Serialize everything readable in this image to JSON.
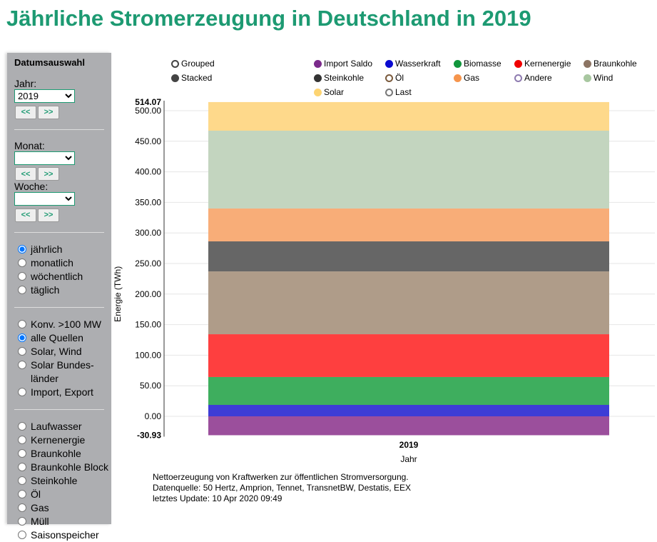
{
  "title": "Jährliche Stromerzeugung in Deutschland in 2019",
  "sidebar": {
    "heading": "Datumsauswahl",
    "year_label": "Jahr:",
    "year_value": "2019",
    "month_label": "Monat:",
    "week_label": "Woche:",
    "prev": "<<",
    "next": ">>",
    "period": [
      {
        "label": "jährlich",
        "checked": true
      },
      {
        "label": "monatlich"
      },
      {
        "label": "wöchentlich"
      },
      {
        "label": "täglich"
      }
    ],
    "sources": [
      {
        "label": "Konv. >100 MW"
      },
      {
        "label": "alle Quellen",
        "checked": true
      },
      {
        "label": "Solar, Wind"
      },
      {
        "label": "Solar Bundes-länder"
      },
      {
        "label": "Import, Export"
      }
    ],
    "types": [
      {
        "label": "Laufwasser"
      },
      {
        "label": "Kernenergie"
      },
      {
        "label": "Braunkohle"
      },
      {
        "label": "Braunkohle Block"
      },
      {
        "label": "Steinkohle"
      },
      {
        "label": "Öl"
      },
      {
        "label": "Gas"
      },
      {
        "label": "Müll"
      },
      {
        "label": "Saisonspeicher"
      }
    ]
  },
  "modes": [
    {
      "label": "Grouped",
      "active": false
    },
    {
      "label": "Stacked",
      "active": true
    }
  ],
  "footer": [
    "Nettoerzeugung von Kraftwerken zur öffentlichen Stromversorgung.",
    "Datenquelle: 50 Hertz, Amprion, Tennet, TransnetBW, Destatis, EEX",
    "letztes Update: 10 Apr 2020 09:49"
  ],
  "chart_data": {
    "type": "bar",
    "stacked": true,
    "categories": [
      "2019"
    ],
    "xlabel": "Jahr",
    "ylabel": "Energie (TWh)",
    "ylim": [
      -30.93,
      514.07
    ],
    "yticks": [
      "0.00",
      "50.00",
      "100.00",
      "150.00",
      "200.00",
      "250.00",
      "300.00",
      "350.00",
      "400.00",
      "450.00",
      "500.00"
    ],
    "ymin_label": "-30.93",
    "ymax_label": "514.07",
    "series": [
      {
        "name": "Import Saldo",
        "color": "#7b2a8b",
        "fill": "#9b4f9c",
        "values": [
          -30.93
        ],
        "enabled": true
      },
      {
        "name": "Wasserkraft",
        "color": "#0a0ad0",
        "fill": "#3d3dd6",
        "values": [
          18.7
        ],
        "enabled": true
      },
      {
        "name": "Biomasse",
        "color": "#11963c",
        "fill": "#3eae5e",
        "values": [
          45.6
        ],
        "enabled": true
      },
      {
        "name": "Kernenergie",
        "color": "#f00000",
        "fill": "#fe3f3f",
        "values": [
          70.0
        ],
        "enabled": true
      },
      {
        "name": "Braunkohle",
        "color": "#8c7463",
        "fill": "#af9c89",
        "values": [
          102.8
        ],
        "enabled": true
      },
      {
        "name": "Steinkohle",
        "color": "#333333",
        "fill": "#666666",
        "values": [
          49.1
        ],
        "enabled": true
      },
      {
        "name": "Öl",
        "color": "#7a5a3c",
        "fill": "#a88",
        "values": [
          0
        ],
        "enabled": false
      },
      {
        "name": "Gas",
        "color": "#f6954c",
        "fill": "#f8ad78",
        "values": [
          53.8
        ],
        "enabled": true
      },
      {
        "name": "Andere",
        "color": "#8e7bb0",
        "fill": "#bbb",
        "values": [
          0
        ],
        "enabled": false
      },
      {
        "name": "Wind",
        "color": "#a8c7a0",
        "fill": "#c3d5bf",
        "values": [
          127.3
        ],
        "enabled": true
      },
      {
        "name": "Solar",
        "color": "#fdd472",
        "fill": "#fed98b",
        "values": [
          46.8
        ],
        "enabled": true
      },
      {
        "name": "Last",
        "color": "#777777",
        "fill": "#999",
        "values": [
          0
        ],
        "enabled": false
      }
    ]
  }
}
